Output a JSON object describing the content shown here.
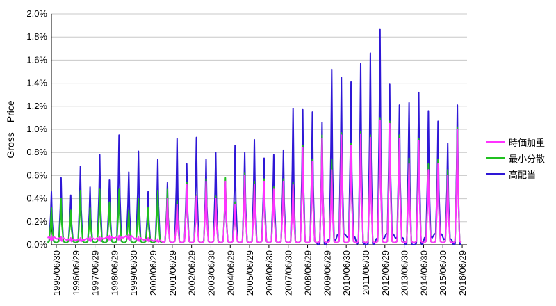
{
  "chart_data": {
    "type": "line",
    "title": "",
    "xlabel": "",
    "ylabel": "Gross－Price",
    "y_unit": "percent",
    "ylim": [
      0,
      2.0
    ],
    "yticks": [
      "0.0%",
      "0.2%",
      "0.4%",
      "0.6%",
      "0.8%",
      "1.0%",
      "1.2%",
      "1.4%",
      "1.6%",
      "1.8%",
      "2.0%"
    ],
    "grid": "horizontal",
    "legend_position": "right",
    "x_tick_labels": [
      "1995/06/30",
      "1996/06/29",
      "1997/06/29",
      "1998/06/29",
      "1999/06/30",
      "2000/06/29",
      "2001/06/29",
      "2002/06/29",
      "2003/06/30",
      "2004/06/29",
      "2005/06/29",
      "2006/06/30",
      "2007/06/30",
      "2008/06/29",
      "2009/06/29",
      "2010/06/30",
      "2011/06/30",
      "2012/06/29",
      "2013/06/30",
      "2014/06/30",
      "2015/06/30",
      "2016/06/29"
    ],
    "x_tick_years": [
      1995,
      1996,
      1997,
      1998,
      1999,
      2000,
      2001,
      2002,
      2003,
      2004,
      2005,
      2006,
      2007,
      2008,
      2009,
      2010,
      2011,
      2012,
      2013,
      2014,
      2015,
      2016
    ],
    "peaks": {
      "dates": [
        "1995.25",
        "1995.75",
        "1996.25",
        "1996.75",
        "1997.25",
        "1997.75",
        "1998.25",
        "1998.75",
        "1999.25",
        "1999.75",
        "2000.25",
        "2000.75",
        "2001.25",
        "2001.75",
        "2002.25",
        "2002.75",
        "2003.25",
        "2003.75",
        "2004.25",
        "2004.75",
        "2005.25",
        "2005.75",
        "2006.25",
        "2006.75",
        "2007.25",
        "2007.75",
        "2008.25",
        "2008.75",
        "2009.25",
        "2009.75",
        "2010.25",
        "2010.75",
        "2011.25",
        "2011.75",
        "2012.25",
        "2012.75",
        "2013.25",
        "2013.75",
        "2014.25",
        "2014.75",
        "2015.25",
        "2015.75",
        "2016.25"
      ],
      "series": [
        {
          "name": "時価加重",
          "values": [
            0.08,
            0.07,
            0.06,
            0.06,
            0.07,
            0.07,
            0.08,
            0.08,
            0.09,
            0.07,
            0.06,
            0.05,
            0.4,
            0.35,
            0.52,
            0.42,
            0.55,
            0.4,
            0.55,
            0.35,
            0.6,
            0.52,
            0.55,
            0.48,
            0.55,
            0.52,
            0.84,
            0.72,
            0.92,
            0.65,
            0.95,
            0.86,
            0.96,
            0.93,
            1.08,
            1.05,
            0.92,
            0.7,
            0.9,
            0.65,
            0.7,
            0.6,
            1.0
          ]
        },
        {
          "name": "最小分散",
          "values": [
            0.32,
            0.4,
            0.3,
            0.47,
            0.32,
            0.48,
            0.37,
            0.48,
            0.3,
            0.4,
            0.32,
            0.47,
            0.48,
            0.38,
            0.54,
            0.43,
            0.57,
            0.42,
            0.58,
            0.37,
            0.62,
            0.55,
            0.57,
            0.5,
            0.57,
            0.54,
            0.86,
            0.74,
            0.95,
            0.74,
            0.97,
            0.88,
            0.98,
            0.95,
            1.1,
            1.07,
            0.95,
            0.75,
            0.92,
            0.7,
            0.74,
            0.65,
            1.02
          ]
        },
        {
          "name": "高配当",
          "values": [
            0.46,
            0.58,
            0.43,
            0.68,
            0.5,
            0.78,
            0.56,
            0.95,
            0.63,
            0.81,
            0.46,
            0.74,
            0.54,
            0.92,
            0.7,
            0.93,
            0.74,
            0.8,
            0.5,
            0.86,
            0.8,
            0.91,
            0.75,
            0.78,
            0.82,
            1.18,
            1.17,
            1.15,
            1.06,
            1.52,
            1.45,
            1.41,
            1.57,
            1.66,
            1.87,
            1.39,
            1.21,
            1.23,
            1.32,
            1.16,
            1.07,
            0.88,
            1.21
          ]
        }
      ]
    }
  },
  "legend": {
    "items": [
      {
        "label": "時価加重",
        "color": "#ff33ff"
      },
      {
        "label": "最小分散",
        "color": "#20c020"
      },
      {
        "label": "高配当",
        "color": "#2e17d6"
      }
    ]
  }
}
